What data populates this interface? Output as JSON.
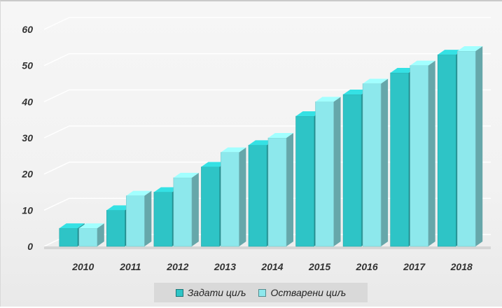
{
  "chart_data": {
    "type": "bar",
    "title": "",
    "xlabel": "",
    "ylabel": "",
    "categories": [
      "2010",
      "2011",
      "2012",
      "2013",
      "2014",
      "2015",
      "2016",
      "2017",
      "2018"
    ],
    "series": [
      {
        "name": "Задати циљ",
        "values": [
          5,
          10,
          15,
          22,
          28,
          36,
          42,
          48,
          53
        ],
        "color": "#2ec4c6"
      },
      {
        "name": "Остварени циљ",
        "values": [
          5,
          14,
          19,
          26,
          30,
          40,
          45,
          50,
          54
        ],
        "color": "#8de8ec"
      }
    ],
    "ylim": [
      0,
      60
    ],
    "yticks": [
      "0",
      "10",
      "20",
      "30",
      "40",
      "50",
      "60"
    ],
    "grid": true,
    "legend_position": "bottom"
  }
}
